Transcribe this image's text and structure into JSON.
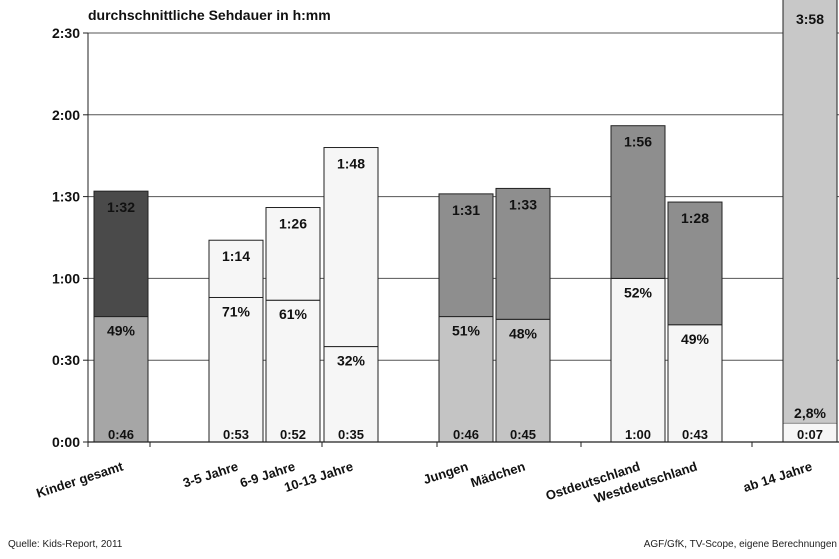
{
  "chart_data": {
    "type": "bar",
    "title": "durchschnittliche Sehdauer in h:mm",
    "y_unit": "minutes",
    "ylim": [
      0,
      150
    ],
    "y_ticks": [
      {
        "value": 0,
        "label": "0:00"
      },
      {
        "value": 30,
        "label": "0:30"
      },
      {
        "value": 60,
        "label": "1:00"
      },
      {
        "value": 90,
        "label": "1:30"
      },
      {
        "value": 120,
        "label": "2:00"
      },
      {
        "value": 150,
        "label": "2:30"
      }
    ],
    "grid": true,
    "categories": [
      {
        "label": "Kinder gesamt",
        "total": 92,
        "total_label": "1:32",
        "lower": 46,
        "lower_label": "0:46",
        "share_label": "49%",
        "colors": [
          "#a6a6a6",
          "#4a4a4a"
        ]
      },
      {
        "label": "3-5 Jahre",
        "total": 74,
        "total_label": "1:14",
        "lower": 53,
        "lower_label": "0:53",
        "share_label": "71%",
        "colors": [
          "#f6f6f6",
          "#f6f6f6"
        ]
      },
      {
        "label": "6-9 Jahre",
        "total": 86,
        "total_label": "1:26",
        "lower": 52,
        "lower_label": "0:52",
        "share_label": "61%",
        "colors": [
          "#f6f6f6",
          "#f6f6f6"
        ]
      },
      {
        "label": "10-13 Jahre",
        "total": 108,
        "total_label": "1:48",
        "lower": 35,
        "lower_label": "0:35",
        "share_label": "32%",
        "colors": [
          "#f6f6f6",
          "#f6f6f6"
        ]
      },
      {
        "label": "Jungen",
        "total": 91,
        "total_label": "1:31",
        "lower": 46,
        "lower_label": "0:46",
        "share_label": "51%",
        "colors": [
          "#c4c4c4",
          "#8e8e8e"
        ]
      },
      {
        "label": "Mädchen",
        "total": 93,
        "total_label": "1:33",
        "lower": 45,
        "lower_label": "0:45",
        "share_label": "48%",
        "colors": [
          "#c4c4c4",
          "#8e8e8e"
        ]
      },
      {
        "label": "Ostdeutschland",
        "total": 116,
        "total_label": "1:56",
        "lower": 60,
        "lower_label": "1:00",
        "share_label": "52%",
        "colors": [
          "#f6f6f6",
          "#8e8e8e"
        ]
      },
      {
        "label": "Westdeutschland",
        "total": 88,
        "total_label": "1:28",
        "lower": 43,
        "lower_label": "0:43",
        "share_label": "49%",
        "colors": [
          "#f6f6f6",
          "#8e8e8e"
        ]
      },
      {
        "label": "ab 14 Jahre",
        "total": 238,
        "total_label": "3:58",
        "lower": 7,
        "lower_label": "0:07",
        "share_label": "2,8%",
        "colors": [
          "#f6f6f6",
          "#c8c8c8"
        ]
      }
    ]
  },
  "source_left": "Quelle: Kids-Report, 2011",
  "source_right": "AGF/GfK, TV-Scope, eigene Berechnungen"
}
